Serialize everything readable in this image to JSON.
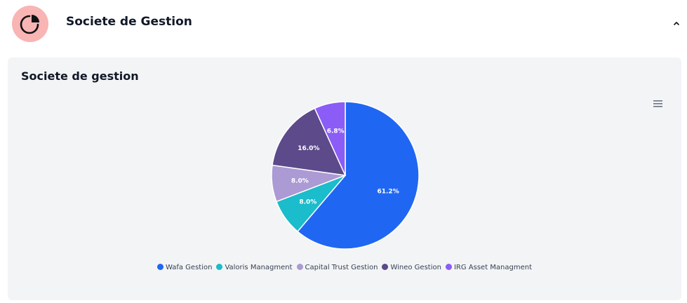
{
  "header": {
    "title": "Societe de Gestion",
    "icon": "pie-chart-icon",
    "collapse_icon": "chevron-up-icon"
  },
  "card": {
    "title": "Societe de gestion",
    "menu_icon": "hamburger-menu-icon"
  },
  "colors": {
    "avatar_bg": "#f9b4b4",
    "card_bg": "#f3f4f6"
  },
  "chart_data": {
    "type": "pie",
    "title": "Societe de gestion",
    "legend_position": "bottom",
    "slices": [
      {
        "label": "Wafa Gestion",
        "value": 61.2,
        "display": "61.2%",
        "color": "#1f67f2"
      },
      {
        "label": "Valoris Managment",
        "value": 8.0,
        "display": "8.0%",
        "color": "#1bbccb"
      },
      {
        "label": "Capital Trust Gestion",
        "value": 8.0,
        "display": "8.0%",
        "color": "#ab9ad3"
      },
      {
        "label": "Wineo Gestion",
        "value": 16.0,
        "display": "16.0%",
        "color": "#5c4a8a"
      },
      {
        "label": "IRG Asset Managment",
        "value": 6.8,
        "display": "6.8%",
        "color": "#8b5cf6"
      }
    ]
  }
}
